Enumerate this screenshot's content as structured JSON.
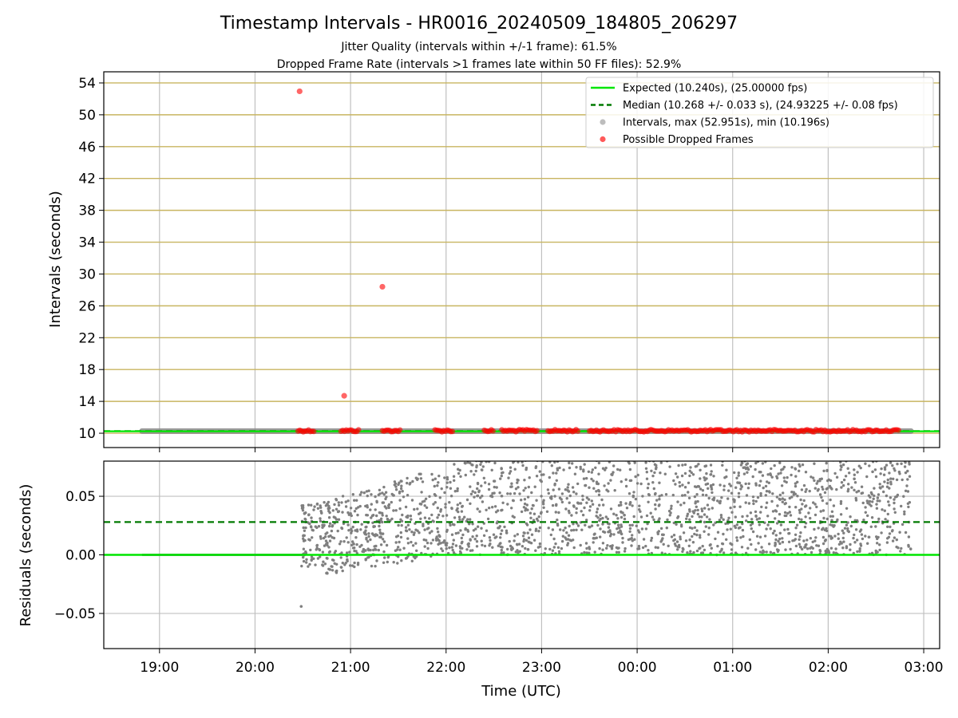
{
  "title": "Timestamp Intervals - HR0016_20240509_184805_206297",
  "subtitle_line1": "Jitter Quality (intervals within +/-1 frame): 61.5%",
  "subtitle_line2": "Dropped Frame Rate (intervals >1 frames late within 50 FF files): 52.9%",
  "xlabel": "Time (UTC)",
  "colors": {
    "expected": "#00e600",
    "median": "#007a00",
    "intervals": "#7f7f7f",
    "dropped": "#ff0000",
    "hgrid_top": "#c8b560",
    "grid": "#c0c0c0"
  },
  "chart_data": [
    {
      "type": "scatter",
      "panel": "intervals",
      "ylabel": "Intervals (seconds)",
      "ylim": [
        8.2,
        55.4
      ],
      "xlim": [
        "18:25",
        "03:10"
      ],
      "y_ticks": [
        10,
        14,
        18,
        22,
        26,
        30,
        34,
        38,
        42,
        46,
        50,
        54
      ],
      "x_ticks": [
        "19:00",
        "20:00",
        "21:00",
        "22:00",
        "23:00",
        "00:00",
        "01:00",
        "02:00",
        "03:00"
      ],
      "grid": "on",
      "legend_position": "top-right",
      "legend": [
        "Expected (10.240s), (25.00000 fps)",
        "Median (10.268 +/- 0.033 s), (24.93225 +/- 0.08 fps)",
        "Intervals, max (52.951s), min (10.196s)",
        "Possible Dropped Frames"
      ],
      "expected_y": 10.24,
      "median_y": 10.268,
      "intervals_range": [
        "18:49",
        "02:52"
      ],
      "intervals_y": 10.27,
      "dropped_frames": [
        {
          "x": "20:28",
          "y": 52.95
        },
        {
          "x": "21:20",
          "y": 28.4
        },
        {
          "x": "20:56",
          "y": 14.7
        }
      ],
      "dropped_clusters": [
        [
          "20:27",
          "20:38"
        ],
        [
          "20:54",
          "21:06"
        ],
        [
          "21:20",
          "21:32"
        ],
        [
          "21:53",
          "22:05"
        ],
        [
          "22:24",
          "22:30"
        ],
        [
          "22:35",
          "22:58"
        ],
        [
          "23:04",
          "23:23"
        ],
        [
          "23:30",
          "02:45"
        ]
      ]
    },
    {
      "type": "scatter",
      "panel": "residuals",
      "ylabel": "Residuals (seconds)",
      "ylim": [
        -0.08,
        0.08
      ],
      "y_ticks": [
        "−0.05",
        "0.00",
        "0.05"
      ],
      "y_tick_values": [
        -0.05,
        0.0,
        0.05
      ],
      "x_ticks": [
        "19:00",
        "20:00",
        "21:00",
        "22:00",
        "23:00",
        "00:00",
        "01:00",
        "02:00",
        "03:00"
      ],
      "grid": "on",
      "expected_y": 0.0,
      "median_y": 0.028,
      "flat_range": [
        "18:49",
        "20:30"
      ],
      "scatter_range": [
        "20:29",
        "02:52"
      ],
      "scatter_y_range": [
        -0.02,
        0.08
      ],
      "outlier": {
        "x": "20:29",
        "y": -0.044
      }
    }
  ]
}
